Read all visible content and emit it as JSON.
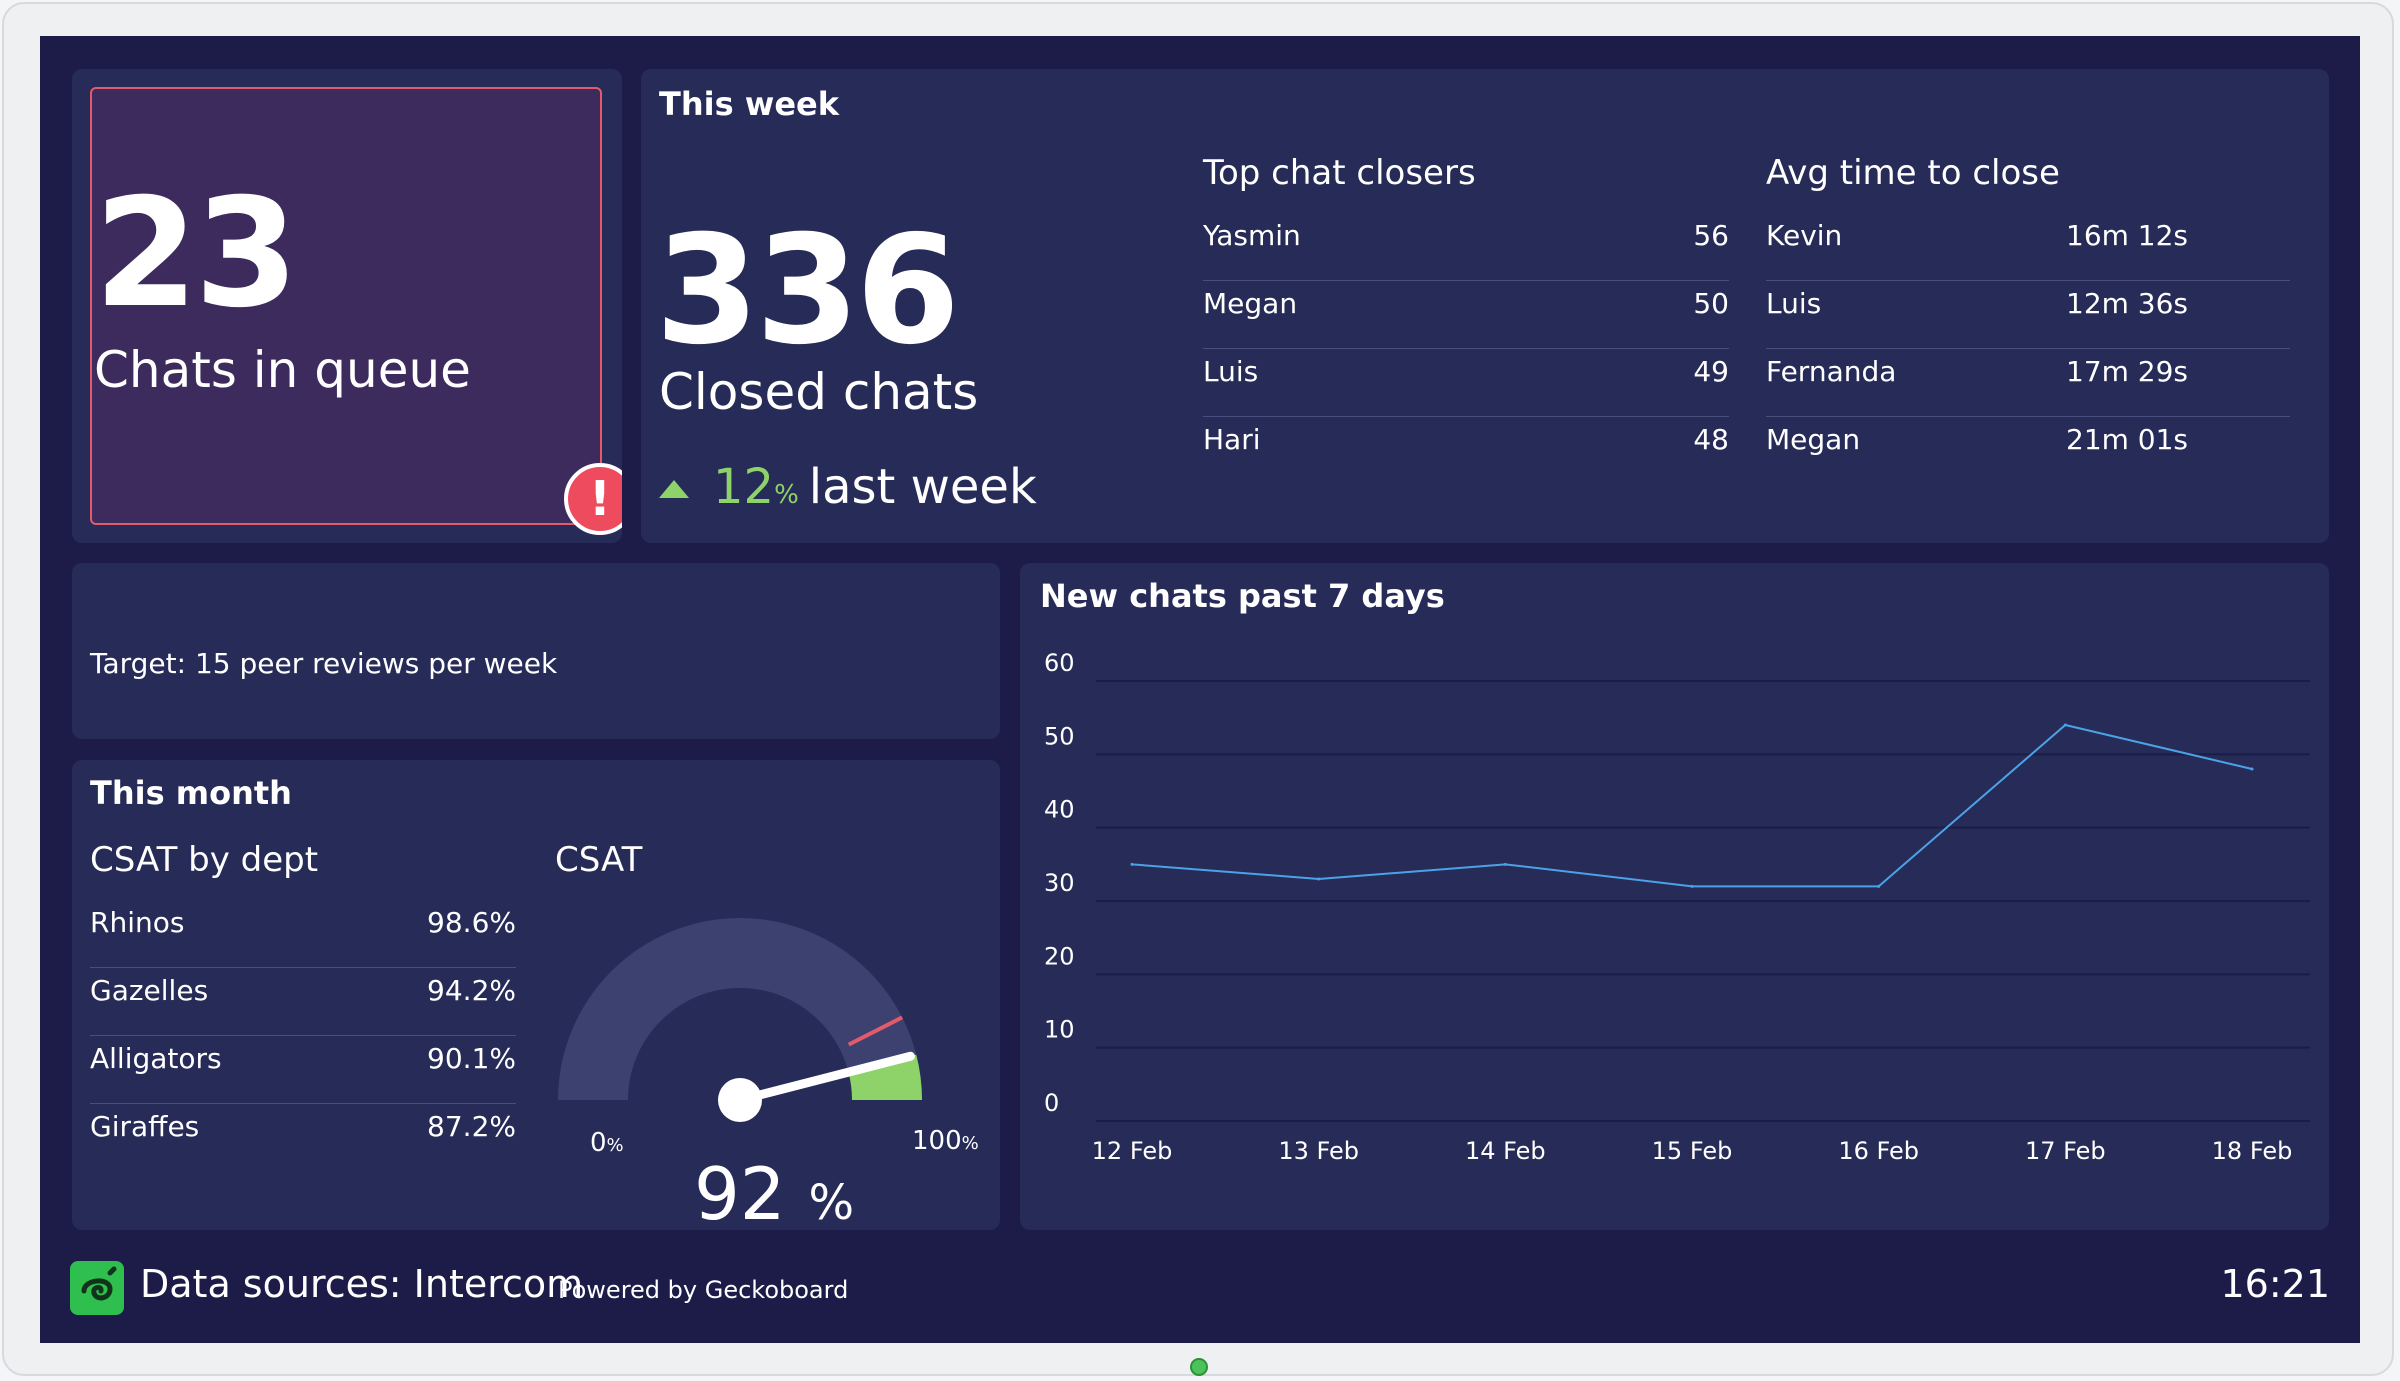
{
  "queue": {
    "value": "23",
    "label": "Chats in queue"
  },
  "week": {
    "title": "This week",
    "closed_value": "336",
    "closed_label": "Closed chats",
    "trend_value": "12",
    "trend_unit": "%",
    "trend_label": "last week",
    "closers": {
      "title": "Top chat closers",
      "rows": [
        {
          "name": "Yasmin",
          "value": "56"
        },
        {
          "name": "Megan",
          "value": "50"
        },
        {
          "name": "Luis",
          "value": "49"
        },
        {
          "name": "Hari",
          "value": "48"
        }
      ]
    },
    "avg_close": {
      "title": "Avg time to close",
      "rows": [
        {
          "name": "Kevin",
          "value": "16m 12s"
        },
        {
          "name": "Luis",
          "value": "12m 36s"
        },
        {
          "name": "Fernanda",
          "value": "17m 29s"
        },
        {
          "name": "Megan",
          "value": "21m 01s"
        }
      ]
    }
  },
  "target": {
    "text": "Target: 15 peer reviews per week"
  },
  "month": {
    "title": "This month",
    "csat_dept": {
      "title": "CSAT by dept",
      "rows": [
        {
          "name": "Rhinos",
          "value": "98.6%"
        },
        {
          "name": "Gazelles",
          "value": "94.2%"
        },
        {
          "name": "Alligators",
          "value": "90.1%"
        },
        {
          "name": "Giraffes",
          "value": "87.2%"
        }
      ]
    },
    "csat": {
      "title": "CSAT",
      "min_label": "0",
      "max_label": "100",
      "unit": "%",
      "value": "92",
      "value_fraction": 0.92,
      "threshold_fraction": 0.85,
      "colors": {
        "track": "#3d4170",
        "fill": "#8ed36a",
        "threshold": "#e25b6b",
        "needle": "#ffffff"
      }
    }
  },
  "chart": {
    "title": "New chats past 7 days",
    "line_color": "#4aa3e8"
  },
  "chart_data": {
    "type": "line",
    "title": "New chats past 7 days",
    "categories": [
      "12 Feb",
      "13 Feb",
      "14 Feb",
      "15 Feb",
      "16 Feb",
      "17 Feb",
      "18 Feb"
    ],
    "series": [
      {
        "values": [
          35,
          33,
          35,
          32,
          32,
          54,
          48
        ]
      }
    ],
    "yticks": [
      0,
      10,
      20,
      30,
      40,
      50,
      60
    ],
    "ylim": [
      0,
      60
    ],
    "grid": true
  },
  "footer": {
    "source": "Data sources: Intercom",
    "powered": "Powered by Geckoboard",
    "time": "16:21",
    "logo_icon": "geckoboard-logo-icon"
  },
  "colors": {
    "background": "#1d1b47",
    "panel": "#272b57",
    "alert": "#ee4b5e",
    "positive": "#8ed36a"
  }
}
